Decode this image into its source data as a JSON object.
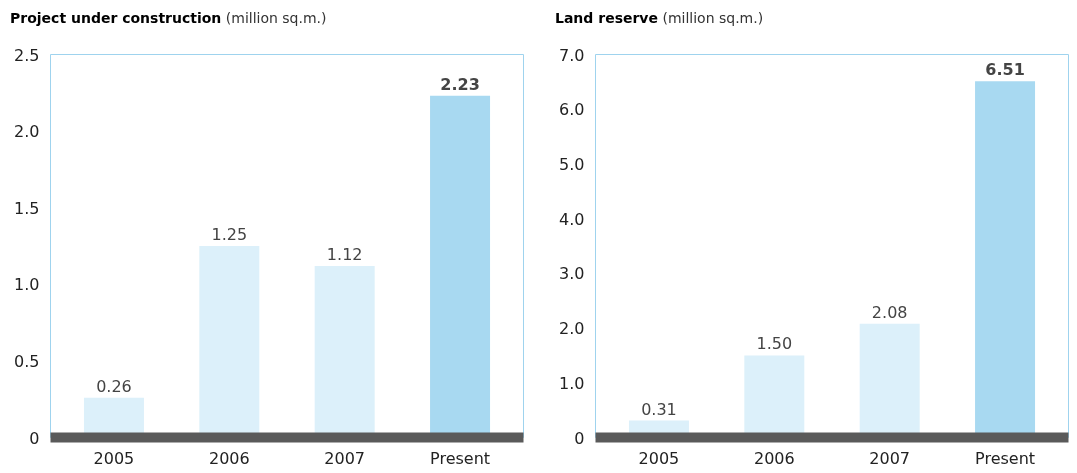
{
  "chart_data": [
    {
      "type": "bar",
      "title": "Project under construction",
      "subtitle": "(million sq.m.)",
      "categories": [
        "2005",
        "2006",
        "2007",
        "Present"
      ],
      "values": [
        0.26,
        1.25,
        1.12,
        2.23
      ],
      "colors": [
        "#dcf0fa",
        "#dcf0fa",
        "#dcf0fa",
        "#a8d9f1"
      ],
      "value_labels": [
        "0.26",
        "1.25",
        "1.12",
        "2.23"
      ],
      "ylim": [
        0,
        2.5
      ],
      "yticks": [
        0,
        {
          "value": 0.5,
          "label": "0.5"
        },
        {
          "value": 1,
          "label": "1.0"
        },
        {
          "value": 1.5,
          "label": "1.5"
        },
        {
          "value": 2,
          "label": "2.0"
        },
        {
          "value": 2.5,
          "label": "2.5"
        }
      ],
      "grid": false
    },
    {
      "type": "bar",
      "title": "Land reserve",
      "subtitle": "(million sq.m.)",
      "categories": [
        "2005",
        "2006",
        "2007",
        "Present"
      ],
      "values": [
        0.31,
        1.5,
        2.08,
        6.51
      ],
      "colors": [
        "#dcf0fa",
        "#dcf0fa",
        "#dcf0fa",
        "#a8d9f1"
      ],
      "value_labels": [
        "0.31",
        "1.50",
        "2.08",
        "6.51"
      ],
      "ylim": [
        0,
        7
      ],
      "yticks": [
        0,
        {
          "value": 1,
          "label": "1.0"
        },
        {
          "value": 2,
          "label": "2.0"
        },
        {
          "value": 3,
          "label": "3.0"
        },
        {
          "value": 4,
          "label": "4.0"
        },
        {
          "value": 5,
          "label": "5.0"
        },
        {
          "value": 6,
          "label": "6.0"
        },
        {
          "value": 7,
          "label": "7.0"
        }
      ],
      "grid": false
    }
  ]
}
